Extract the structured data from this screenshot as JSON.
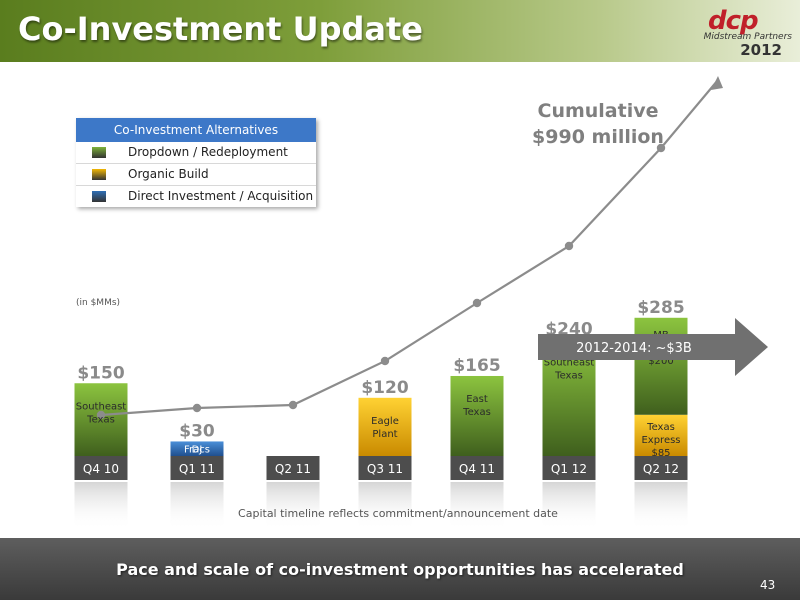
{
  "header": {
    "title": "Co-Investment Update",
    "logo_mark": "dcp",
    "logo_sub": "Midstream Partners",
    "logo_year": "2012"
  },
  "legend": {
    "title": "Co-Investment Alternatives",
    "items": [
      {
        "label": "Dropdown / Redeployment",
        "color": "#7db23a"
      },
      {
        "label": "Organic Build",
        "color": "#f2b705"
      },
      {
        "label": "Direct Investment / Acquisition",
        "color": "#2e6fb7"
      }
    ]
  },
  "chart_data": {
    "type": "bar",
    "unit_note": "(in $MMs)",
    "categories": [
      "Q4 10",
      "Q1 11",
      "Q2 11",
      "Q3 11",
      "Q4 11",
      "Q1 12",
      "Q2 12"
    ],
    "totals": [
      "$150",
      "$30",
      "",
      "$120",
      "$165",
      "$240",
      "$285"
    ],
    "segments": [
      [
        {
          "value": 150,
          "type": "Dropdown / Redeployment",
          "label": "Southeast Texas"
        }
      ],
      [
        {
          "value": 30,
          "type": "Direct Investment / Acquisition",
          "label": "DJ Fracs"
        }
      ],
      [],
      [
        {
          "value": 120,
          "type": "Organic Build",
          "label": "Eagle Plant"
        }
      ],
      [
        {
          "value": 165,
          "type": "Dropdown / Redeployment",
          "label": "East Texas"
        }
      ],
      [
        {
          "value": 240,
          "type": "Dropdown / Redeployment",
          "label": "Southeast Texas"
        }
      ],
      [
        {
          "value": 85,
          "type": "Organic Build",
          "label": "Texas Express $85"
        },
        {
          "value": 200,
          "type": "Dropdown / Redeployment",
          "label": "MB Fracs $200"
        }
      ]
    ],
    "cumulative": {
      "label": "Cumulative $990 million",
      "values": [
        150,
        180,
        180,
        300,
        465,
        705,
        990
      ]
    },
    "arrow_label": "2012-2014: ~$3B",
    "note": "Capital timeline reflects commitment/announcement date"
  },
  "footer": {
    "text": "Pace and scale of co-investment opportunities has accelerated",
    "page_number": "43"
  }
}
